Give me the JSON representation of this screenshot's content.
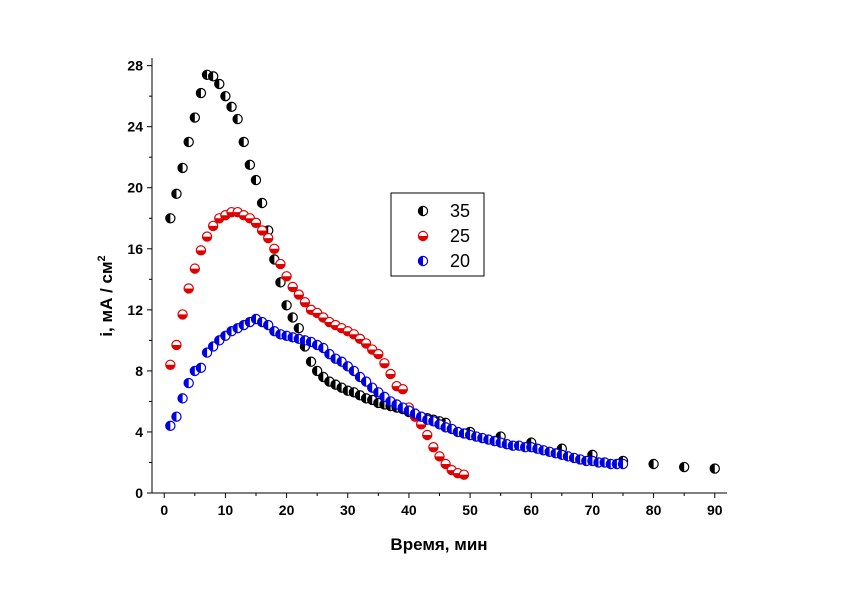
{
  "chart_data": {
    "type": "scatter",
    "xlabel": "Время, мин",
    "ylabel": {
      "main": "i, мА / см",
      "sup": "2"
    },
    "xlim": [
      -2,
      92
    ],
    "ylim": [
      0,
      28.5
    ],
    "xticks": [
      0,
      10,
      20,
      30,
      40,
      50,
      60,
      70,
      80,
      90
    ],
    "yticks": [
      0,
      4,
      8,
      12,
      16,
      20,
      24,
      28
    ],
    "grid": false,
    "legend_position": "center",
    "series": [
      {
        "name": "35",
        "color": "#000000",
        "fill_half": "left",
        "points": [
          [
            1,
            18.0
          ],
          [
            2,
            19.6
          ],
          [
            3,
            21.3
          ],
          [
            4,
            23.0
          ],
          [
            5,
            24.6
          ],
          [
            6,
            26.2
          ],
          [
            7,
            27.4
          ],
          [
            8,
            27.3
          ],
          [
            9,
            26.8
          ],
          [
            10,
            26.0
          ],
          [
            11,
            25.3
          ],
          [
            12,
            24.5
          ],
          [
            13,
            23.0
          ],
          [
            14,
            21.5
          ],
          [
            15,
            20.5
          ],
          [
            16,
            19.0
          ],
          [
            17,
            17.2
          ],
          [
            18,
            15.3
          ],
          [
            19,
            13.8
          ],
          [
            20,
            12.3
          ],
          [
            21,
            11.5
          ],
          [
            22,
            10.8
          ],
          [
            23,
            9.6
          ],
          [
            24,
            8.6
          ],
          [
            25,
            8.0
          ],
          [
            26,
            7.6
          ],
          [
            27,
            7.3
          ],
          [
            28,
            7.1
          ],
          [
            29,
            6.9
          ],
          [
            30,
            6.7
          ],
          [
            31,
            6.6
          ],
          [
            32,
            6.4
          ],
          [
            33,
            6.2
          ],
          [
            34,
            6.1
          ],
          [
            35,
            5.9
          ],
          [
            36,
            5.8
          ],
          [
            37,
            5.7
          ],
          [
            38,
            5.6
          ],
          [
            39,
            5.5
          ],
          [
            40,
            5.3
          ],
          [
            41,
            5.2
          ],
          [
            42,
            5.0
          ],
          [
            43,
            4.9
          ],
          [
            44,
            4.8
          ],
          [
            45,
            4.7
          ],
          [
            46,
            4.6
          ],
          [
            50,
            4.0
          ],
          [
            55,
            3.7
          ],
          [
            60,
            3.3
          ],
          [
            65,
            2.9
          ],
          [
            70,
            2.5
          ],
          [
            75,
            2.1
          ],
          [
            80,
            1.9
          ],
          [
            85,
            1.7
          ],
          [
            90,
            1.6
          ]
        ]
      },
      {
        "name": "25",
        "color": "#e00000",
        "fill_half": "bottom",
        "points": [
          [
            1,
            8.4
          ],
          [
            2,
            9.7
          ],
          [
            3,
            11.7
          ],
          [
            4,
            13.4
          ],
          [
            5,
            14.7
          ],
          [
            6,
            15.9
          ],
          [
            7,
            16.8
          ],
          [
            8,
            17.5
          ],
          [
            9,
            18.0
          ],
          [
            10,
            18.2
          ],
          [
            11,
            18.4
          ],
          [
            12,
            18.4
          ],
          [
            13,
            18.2
          ],
          [
            14,
            18.0
          ],
          [
            15,
            17.7
          ],
          [
            16,
            17.2
          ],
          [
            17,
            16.7
          ],
          [
            18,
            16.0
          ],
          [
            19,
            15.0
          ],
          [
            20,
            14.2
          ],
          [
            21,
            13.5
          ],
          [
            22,
            13.0
          ],
          [
            23,
            12.5
          ],
          [
            24,
            12.0
          ],
          [
            25,
            11.8
          ],
          [
            26,
            11.5
          ],
          [
            27,
            11.2
          ],
          [
            28,
            11.0
          ],
          [
            29,
            10.8
          ],
          [
            30,
            10.6
          ],
          [
            31,
            10.4
          ],
          [
            32,
            10.1
          ],
          [
            33,
            9.8
          ],
          [
            34,
            9.4
          ],
          [
            35,
            9.1
          ],
          [
            36,
            8.5
          ],
          [
            37,
            7.8
          ],
          [
            38,
            7.0
          ],
          [
            39,
            6.8
          ],
          [
            40,
            5.6
          ],
          [
            41,
            5.0
          ],
          [
            42,
            4.5
          ],
          [
            43,
            3.8
          ],
          [
            44,
            3.0
          ],
          [
            45,
            2.4
          ],
          [
            46,
            1.9
          ],
          [
            47,
            1.5
          ],
          [
            48,
            1.3
          ],
          [
            49,
            1.2
          ]
        ]
      },
      {
        "name": "20",
        "color": "#0000e0",
        "fill_half": "left",
        "points": [
          [
            1,
            4.4
          ],
          [
            2,
            5.0
          ],
          [
            3,
            6.2
          ],
          [
            4,
            7.2
          ],
          [
            5,
            8.0
          ],
          [
            6,
            8.2
          ],
          [
            7,
            9.2
          ],
          [
            8,
            9.6
          ],
          [
            9,
            10.0
          ],
          [
            10,
            10.3
          ],
          [
            11,
            10.6
          ],
          [
            12,
            10.8
          ],
          [
            13,
            11.0
          ],
          [
            14,
            11.2
          ],
          [
            15,
            11.4
          ],
          [
            16,
            11.2
          ],
          [
            17,
            11.0
          ],
          [
            18,
            10.6
          ],
          [
            19,
            10.4
          ],
          [
            20,
            10.3
          ],
          [
            21,
            10.2
          ],
          [
            22,
            10.1
          ],
          [
            23,
            10.0
          ],
          [
            24,
            9.9
          ],
          [
            25,
            9.7
          ],
          [
            26,
            9.5
          ],
          [
            27,
            9.1
          ],
          [
            28,
            8.8
          ],
          [
            29,
            8.6
          ],
          [
            30,
            8.3
          ],
          [
            31,
            8.0
          ],
          [
            32,
            7.6
          ],
          [
            33,
            7.3
          ],
          [
            34,
            6.9
          ],
          [
            35,
            6.6
          ],
          [
            36,
            6.3
          ],
          [
            37,
            6.0
          ],
          [
            38,
            5.8
          ],
          [
            39,
            5.6
          ],
          [
            40,
            5.4
          ],
          [
            41,
            5.2
          ],
          [
            42,
            5.0
          ],
          [
            43,
            4.8
          ],
          [
            44,
            4.7
          ],
          [
            45,
            4.5
          ],
          [
            46,
            4.3
          ],
          [
            47,
            4.2
          ],
          [
            48,
            4.0
          ],
          [
            49,
            3.9
          ],
          [
            50,
            3.8
          ],
          [
            51,
            3.7
          ],
          [
            52,
            3.6
          ],
          [
            53,
            3.5
          ],
          [
            54,
            3.4
          ],
          [
            55,
            3.3
          ],
          [
            56,
            3.2
          ],
          [
            57,
            3.1
          ],
          [
            58,
            3.1
          ],
          [
            59,
            3.0
          ],
          [
            60,
            3.0
          ],
          [
            61,
            2.9
          ],
          [
            62,
            2.8
          ],
          [
            63,
            2.7
          ],
          [
            64,
            2.6
          ],
          [
            65,
            2.5
          ],
          [
            66,
            2.4
          ],
          [
            67,
            2.3
          ],
          [
            68,
            2.2
          ],
          [
            69,
            2.1
          ],
          [
            70,
            2.1
          ],
          [
            71,
            2.0
          ],
          [
            72,
            2.0
          ],
          [
            73,
            1.9
          ],
          [
            74,
            1.9
          ],
          [
            75,
            1.9
          ]
        ]
      }
    ]
  }
}
